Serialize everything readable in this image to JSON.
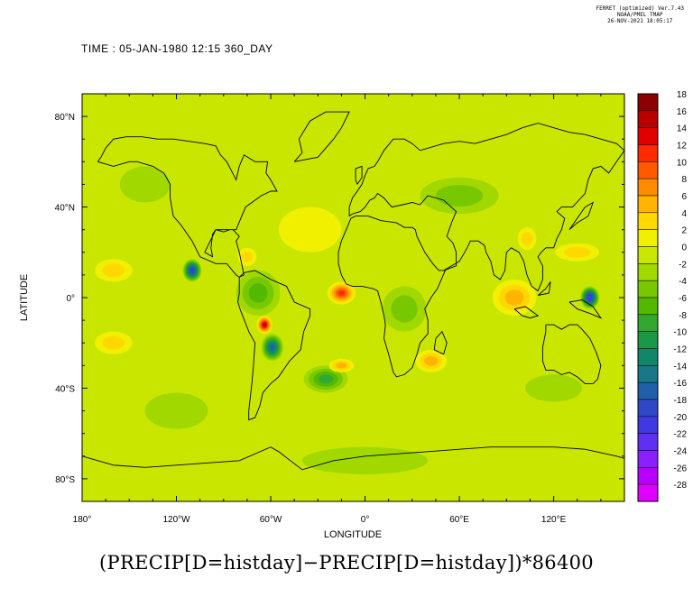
{
  "header": {
    "line1": "FERRET (optimized) Ver.7.43",
    "line2": "NOAA/PMEL TMAP",
    "line3": "26-NOV-2021 18:05:17"
  },
  "time_label": "TIME : 05-JAN-1980 12:15 360_DAY",
  "caption": "(PRECIP[D=histday]−PRECIP[D=histday])*86400",
  "chart_data": {
    "type": "heatmap",
    "xlabel": "LONGITUDE",
    "ylabel": "LATITUDE",
    "xlim": [
      180,
      525
    ],
    "ylim": [
      -90,
      90
    ],
    "x_ticks": [
      {
        "value": 180,
        "label": "180°"
      },
      {
        "value": 240,
        "label": "120°W"
      },
      {
        "value": 300,
        "label": "60°W"
      },
      {
        "value": 360,
        "label": "0°"
      },
      {
        "value": 420,
        "label": "60°E"
      },
      {
        "value": 480,
        "label": "120°E"
      }
    ],
    "y_ticks": [
      {
        "value": 80,
        "label": "80°N"
      },
      {
        "value": 40,
        "label": "40°N"
      },
      {
        "value": 0,
        "label": "0°"
      },
      {
        "value": -40,
        "label": "40°S"
      },
      {
        "value": -80,
        "label": "80°S"
      }
    ],
    "colorbar": {
      "levels": [
        18,
        16,
        14,
        12,
        10,
        8,
        6,
        4,
        2,
        0,
        -2,
        -4,
        -6,
        -8,
        -10,
        -12,
        -14,
        -16,
        -18,
        -20,
        -22,
        -24,
        -26,
        -28
      ],
      "colors": [
        "#8b0000",
        "#b80000",
        "#e00000",
        "#ff2a00",
        "#ff5a00",
        "#ff8c00",
        "#ffb400",
        "#ffd800",
        "#f0f000",
        "#c8e600",
        "#a0d800",
        "#78c800",
        "#52b800",
        "#32a832",
        "#1a9848",
        "#108868",
        "#187888",
        "#2060a8",
        "#3048c8",
        "#4038e0",
        "#6030f0",
        "#8a20ff",
        "#b800ff",
        "#e000ff"
      ]
    },
    "background_value": 1,
    "anomalies": [
      {
        "lon": 250,
        "lat": 12,
        "value": -20,
        "rx": 6,
        "ry": 5
      },
      {
        "lon": 296,
        "lat": -12,
        "value": 16,
        "rx": 5,
        "ry": 4
      },
      {
        "lon": 301,
        "lat": -22,
        "value": -16,
        "rx": 7,
        "ry": 6
      },
      {
        "lon": 292,
        "lat": 2,
        "value": -6,
        "rx": 14,
        "ry": 10
      },
      {
        "lon": 345,
        "lat": 2,
        "value": 12,
        "rx": 9,
        "ry": 5
      },
      {
        "lon": 335,
        "lat": -36,
        "value": -8,
        "rx": 14,
        "ry": 6
      },
      {
        "lon": 345,
        "lat": -30,
        "value": 6,
        "rx": 8,
        "ry": 3
      },
      {
        "lon": 385,
        "lat": -5,
        "value": -4,
        "rx": 14,
        "ry": 10
      },
      {
        "lon": 455,
        "lat": 0,
        "value": 6,
        "rx": 14,
        "ry": 8
      },
      {
        "lon": 503,
        "lat": 0,
        "value": -22,
        "rx": 6,
        "ry": 5
      },
      {
        "lon": 495,
        "lat": 20,
        "value": 4,
        "rx": 14,
        "ry": 4
      },
      {
        "lon": 463,
        "lat": 26,
        "value": 4,
        "rx": 6,
        "ry": 5
      },
      {
        "lon": 200,
        "lat": 12,
        "value": 4,
        "rx": 12,
        "ry": 5
      },
      {
        "lon": 200,
        "lat": -20,
        "value": 4,
        "rx": 12,
        "ry": 5
      },
      {
        "lon": 402,
        "lat": -28,
        "value": 6,
        "rx": 10,
        "ry": 5
      },
      {
        "lon": 325,
        "lat": 30,
        "value": 2,
        "rx": 20,
        "ry": 10
      },
      {
        "lon": 285,
        "lat": 18,
        "value": 4,
        "rx": 6,
        "ry": 4
      },
      {
        "lon": 420,
        "lat": 45,
        "value": -4,
        "rx": 25,
        "ry": 8
      },
      {
        "lon": 240,
        "lat": -50,
        "value": -2,
        "rx": 20,
        "ry": 8
      },
      {
        "lon": 480,
        "lat": -40,
        "value": -2,
        "rx": 18,
        "ry": 6
      },
      {
        "lon": 220,
        "lat": 50,
        "value": -2,
        "rx": 16,
        "ry": 8
      },
      {
        "lon": 360,
        "lat": -72,
        "value": -2,
        "rx": 40,
        "ry": 6
      }
    ]
  }
}
